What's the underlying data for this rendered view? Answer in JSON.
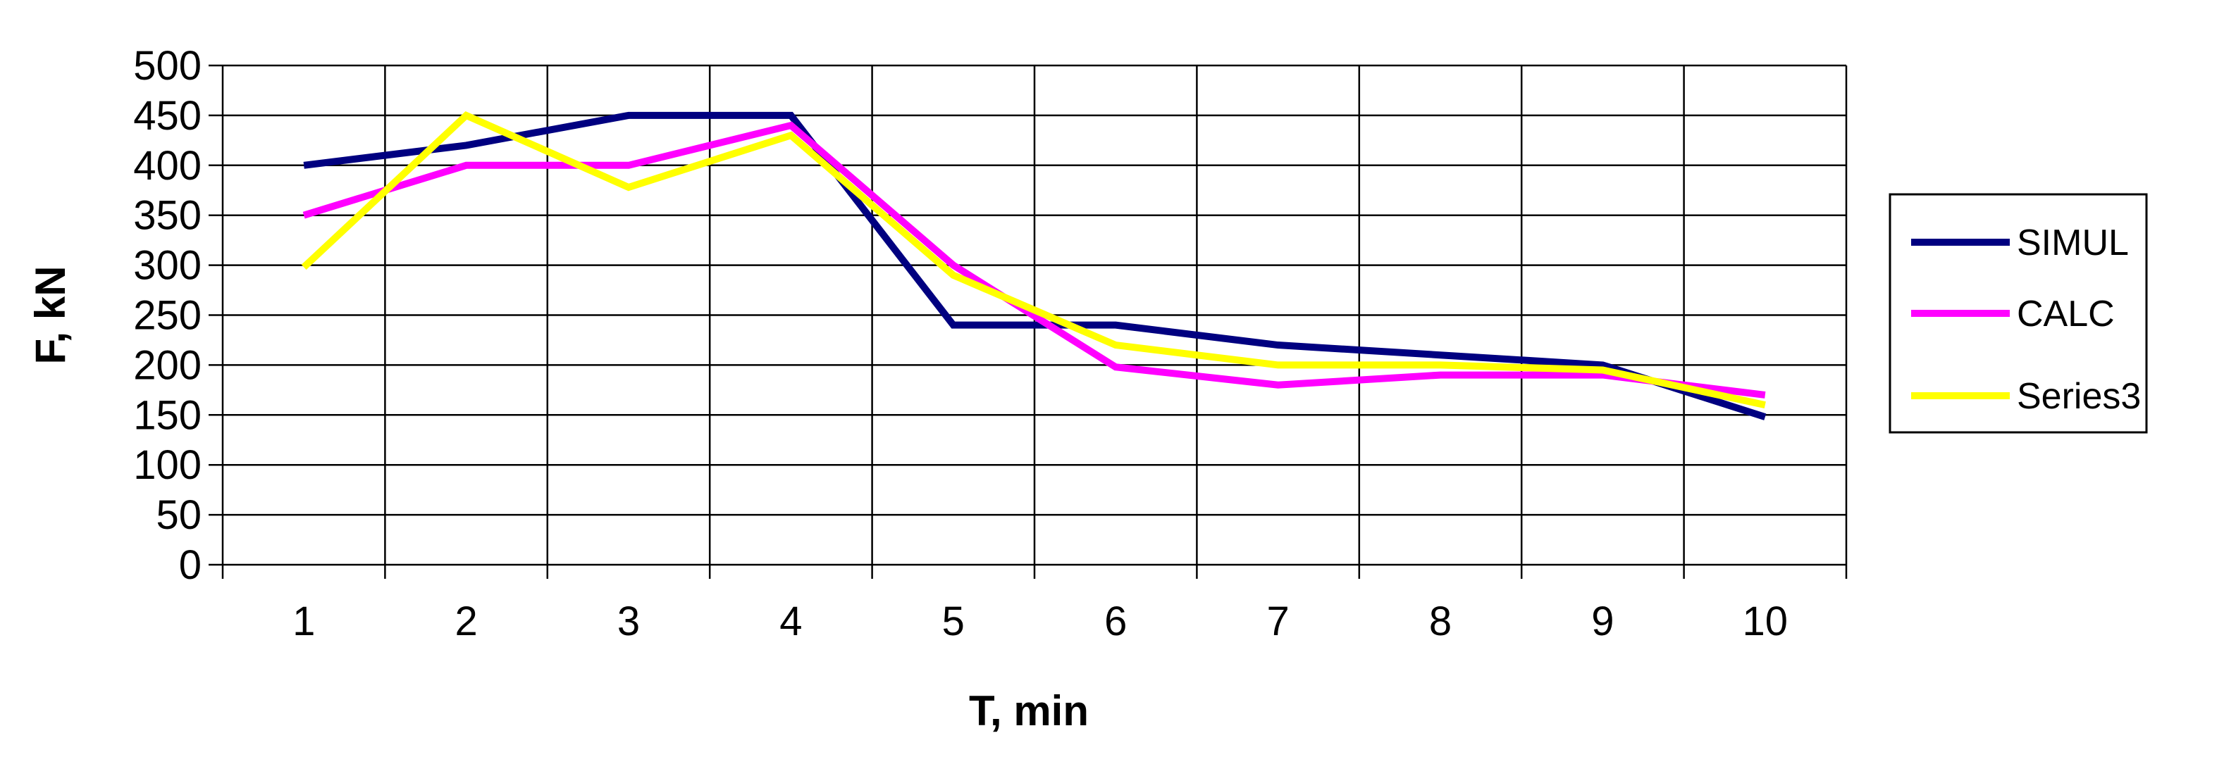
{
  "chart_data": {
    "type": "line",
    "title": "",
    "xlabel": "T, min",
    "ylabel": "F, kN",
    "categories": [
      "1",
      "2",
      "3",
      "4",
      "5",
      "6",
      "7",
      "8",
      "9",
      "10"
    ],
    "ylim": [
      0,
      500
    ],
    "yticks": [
      "0",
      "50",
      "100",
      "150",
      "200",
      "250",
      "300",
      "350",
      "400",
      "450",
      "500"
    ],
    "grid": true,
    "legend_position": "right",
    "series": [
      {
        "name": "SIMUL",
        "color": "#000080",
        "values": [
          400,
          420,
          450,
          450,
          240,
          240,
          220,
          210,
          200,
          148
        ]
      },
      {
        "name": "CALC",
        "color": "#FF00FF",
        "values": [
          350,
          400,
          400,
          440,
          300,
          198,
          180,
          190,
          190,
          170
        ]
      },
      {
        "name": "Series3",
        "color": "#FFFF00",
        "values": [
          298,
          450,
          378,
          430,
          290,
          220,
          200,
          200,
          195,
          160
        ]
      }
    ]
  }
}
